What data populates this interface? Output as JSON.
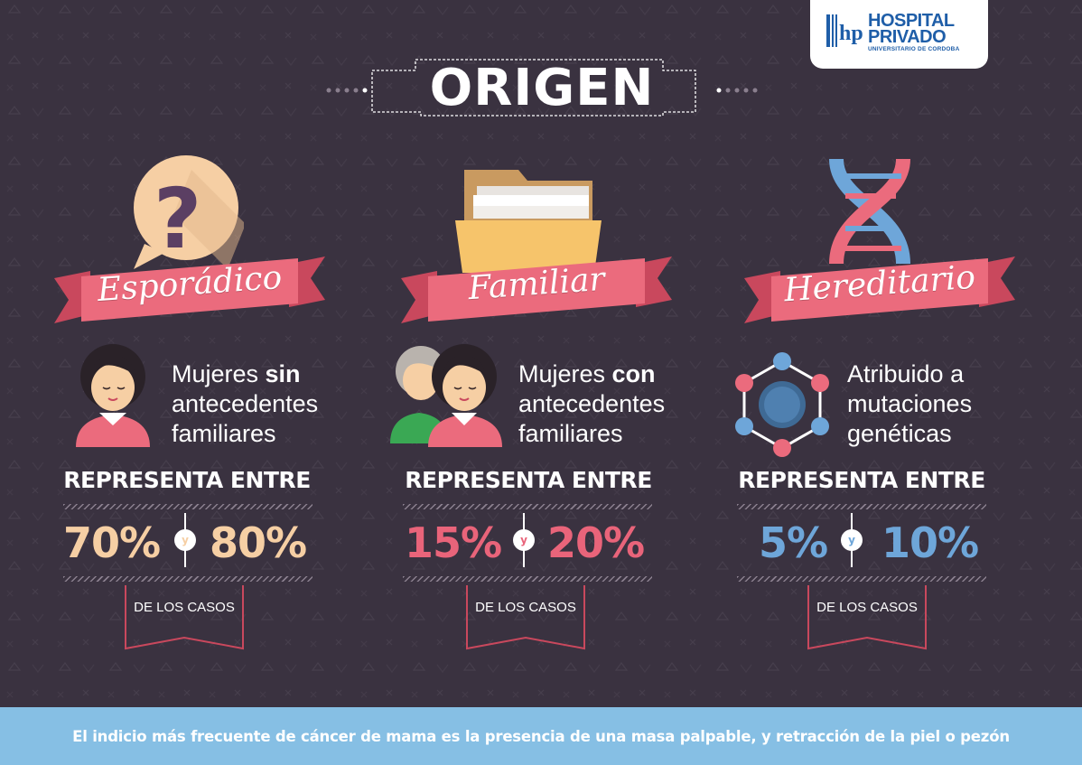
{
  "logo": {
    "line1": "HOSPITAL",
    "line2": "PRIVADO",
    "sub": "UNIVERSITARIO DE CORDOBA"
  },
  "title": "ORIGEN",
  "columns": [
    {
      "ribbon": "Esporádico",
      "desc_pre": "Mujeres ",
      "desc_bold": "sin",
      "desc_rest_1": "antecedentes",
      "desc_rest_2": "familiares",
      "represent": "REPRESENTA ENTRE",
      "pct_low": "70%",
      "pct_high": "80%",
      "conj": "y",
      "casos": "DE LOS CASOS",
      "color": "#f6cfa4"
    },
    {
      "ribbon": "Familiar",
      "desc_pre": "Mujeres ",
      "desc_bold": "con",
      "desc_rest_1": "antecedentes",
      "desc_rest_2": "familiares",
      "represent": "REPRESENTA ENTRE",
      "pct_low": "15%",
      "pct_high": "20%",
      "conj": "y",
      "casos": "DE LOS CASOS",
      "color": "#e9647a"
    },
    {
      "ribbon": "Hereditario",
      "desc_line1": "Atribuido a",
      "desc_line2": "mutaciones",
      "desc_line3": "genéticas",
      "represent": "REPRESENTA ENTRE",
      "pct_low": "5%",
      "pct_high": "10%",
      "conj": "y",
      "casos": "DE LOS CASOS",
      "color": "#6ea6d9"
    }
  ],
  "footer": "El indicio más frecuente de cáncer de mama es la presencia de una masa palpable, y retracción de la piel o pezón"
}
